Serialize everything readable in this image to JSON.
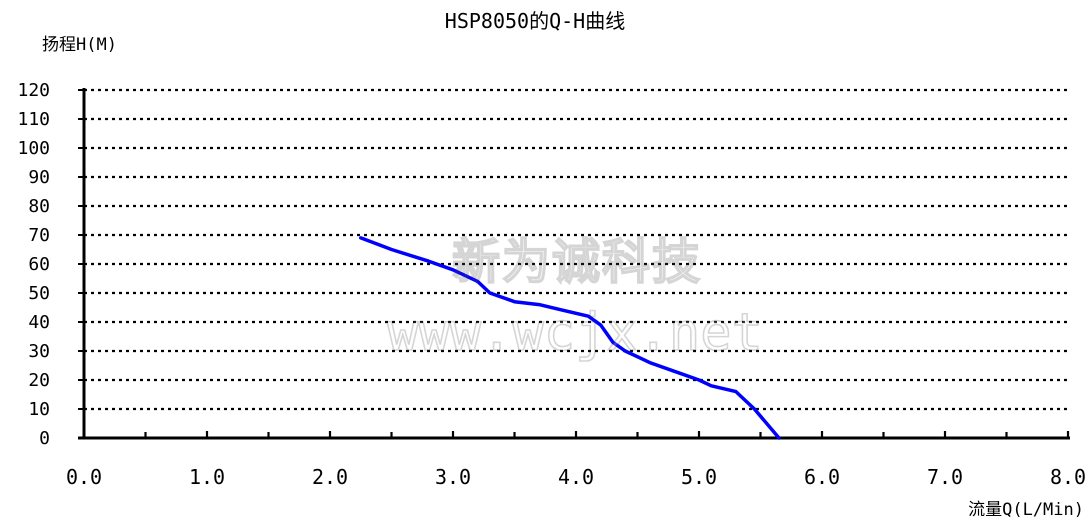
{
  "chart_data": {
    "type": "line",
    "title": "HSP8050的Q-H曲线",
    "ylabel": "扬程H(M)",
    "xlabel": "流量Q(L/Min)",
    "xlim": [
      0,
      8
    ],
    "ylim": [
      0,
      120
    ],
    "x_ticks": [
      0,
      1,
      2,
      3,
      4,
      5,
      6,
      7,
      8
    ],
    "x_tick_labels": [
      "0.0",
      "1.0",
      "2.0",
      "3.0",
      "4.0",
      "5.0",
      "6.0",
      "7.0",
      "8.0"
    ],
    "y_ticks": [
      0,
      10,
      20,
      30,
      40,
      50,
      60,
      70,
      80,
      90,
      100,
      110,
      120
    ],
    "grid": "horizontal dotted",
    "series": [
      {
        "color": "#0000ff",
        "x": [
          2.25,
          2.5,
          2.8,
          3.0,
          3.2,
          3.3,
          3.5,
          3.7,
          3.9,
          4.1,
          4.2,
          4.3,
          4.4,
          4.6,
          4.8,
          5.0,
          5.1,
          5.3,
          5.45,
          5.65
        ],
        "y": [
          69,
          65,
          61,
          58,
          54,
          50,
          47,
          46,
          44,
          42,
          39,
          33,
          30,
          26,
          23,
          20,
          18,
          16,
          10,
          0
        ]
      }
    ]
  },
  "watermark": {
    "line1": "新为诚科技",
    "line2": "www.wcjx.net"
  }
}
